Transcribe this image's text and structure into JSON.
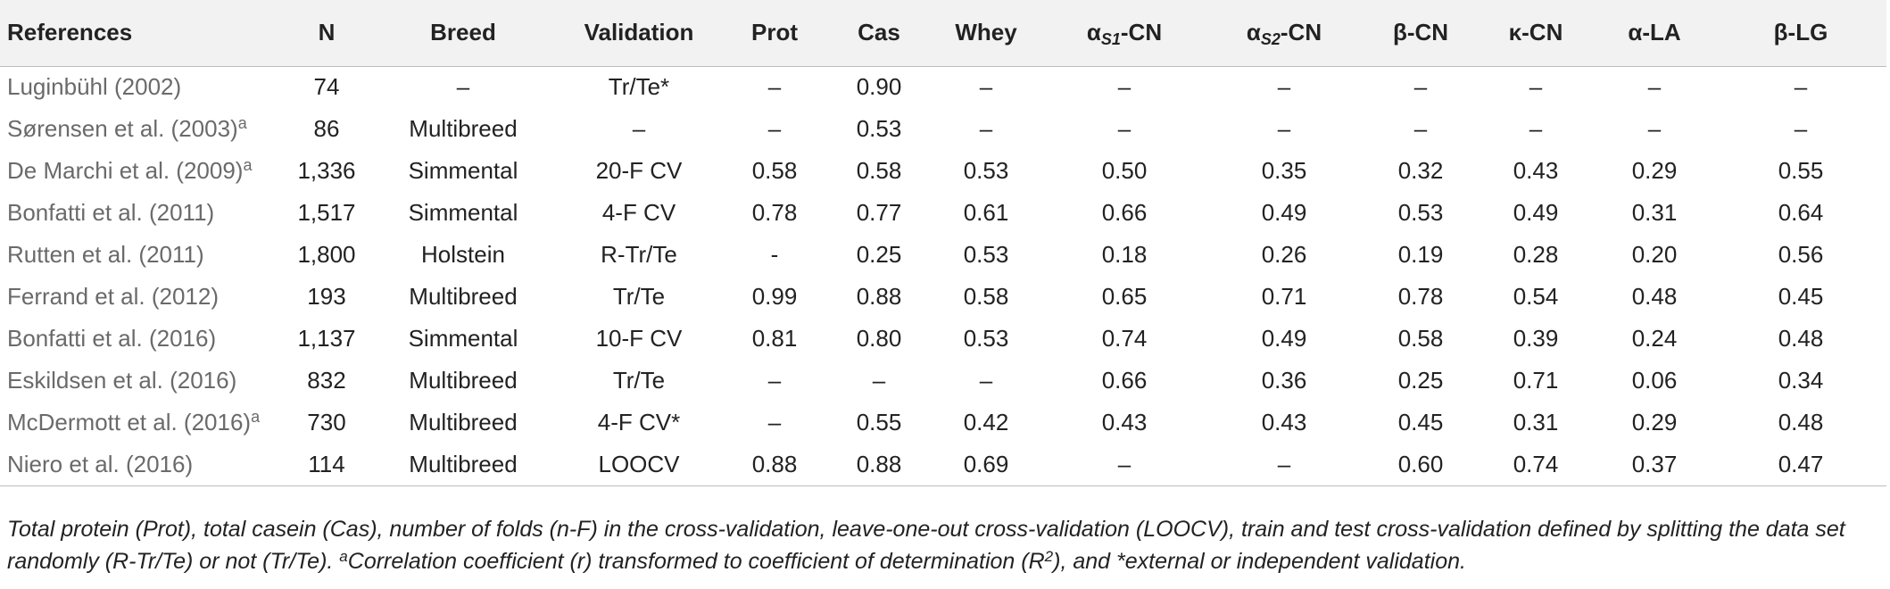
{
  "table": {
    "headers": [
      {
        "key": "references",
        "main": "References",
        "sub": "",
        "tail": ""
      },
      {
        "key": "n",
        "main": "N",
        "sub": "",
        "tail": ""
      },
      {
        "key": "breed",
        "main": "Breed",
        "sub": "",
        "tail": ""
      },
      {
        "key": "validation",
        "main": "Validation",
        "sub": "",
        "tail": ""
      },
      {
        "key": "prot",
        "main": "Prot",
        "sub": "",
        "tail": ""
      },
      {
        "key": "cas",
        "main": "Cas",
        "sub": "",
        "tail": ""
      },
      {
        "key": "whey",
        "main": "Whey",
        "sub": "",
        "tail": ""
      },
      {
        "key": "as1cn",
        "main": "α",
        "sub": "S1",
        "tail": "-CN"
      },
      {
        "key": "as2cn",
        "main": "α",
        "sub": "S2",
        "tail": "-CN"
      },
      {
        "key": "bcn",
        "main": "β-CN",
        "sub": "",
        "tail": ""
      },
      {
        "key": "kcn",
        "main": "κ-CN",
        "sub": "",
        "tail": ""
      },
      {
        "key": "ala",
        "main": "α-LA",
        "sub": "",
        "tail": ""
      },
      {
        "key": "blg",
        "main": "β-LG",
        "sub": "",
        "tail": ""
      }
    ],
    "rows": [
      {
        "ref": "Luginbühl (2002)",
        "mark": "",
        "cells": [
          "74",
          "–",
          "Tr/Te*",
          "–",
          "0.90",
          "–",
          "–",
          "–",
          "–",
          "–",
          "–",
          "–"
        ]
      },
      {
        "ref": "Sørensen et al. (2003)",
        "mark": "a",
        "cells": [
          "86",
          "Multibreed",
          "–",
          "–",
          "0.53",
          "–",
          "–",
          "–",
          "–",
          "–",
          "–",
          "–"
        ]
      },
      {
        "ref": "De Marchi et al. (2009)",
        "mark": "a",
        "cells": [
          "1,336",
          "Simmental",
          "20-F CV",
          "0.58",
          "0.58",
          "0.53",
          "0.50",
          "0.35",
          "0.32",
          "0.43",
          "0.29",
          "0.55"
        ]
      },
      {
        "ref": "Bonfatti et al. (2011)",
        "mark": "",
        "cells": [
          "1,517",
          "Simmental",
          "4-F CV",
          "0.78",
          "0.77",
          "0.61",
          "0.66",
          "0.49",
          "0.53",
          "0.49",
          "0.31",
          "0.64"
        ]
      },
      {
        "ref": "Rutten et al. (2011)",
        "mark": "",
        "cells": [
          "1,800",
          "Holstein",
          "R-Tr/Te",
          "-",
          "0.25",
          "0.53",
          "0.18",
          "0.26",
          "0.19",
          "0.28",
          "0.20",
          "0.56"
        ]
      },
      {
        "ref": "Ferrand et al. (2012)",
        "mark": "",
        "cells": [
          "193",
          "Multibreed",
          "Tr/Te",
          "0.99",
          "0.88",
          "0.58",
          "0.65",
          "0.71",
          "0.78",
          "0.54",
          "0.48",
          "0.45"
        ]
      },
      {
        "ref": "Bonfatti et al. (2016)",
        "mark": "",
        "cells": [
          "1,137",
          "Simmental",
          "10-F CV",
          "0.81",
          "0.80",
          "0.53",
          "0.74",
          "0.49",
          "0.58",
          "0.39",
          "0.24",
          "0.48"
        ]
      },
      {
        "ref": "Eskildsen et al. (2016)",
        "mark": "",
        "cells": [
          "832",
          "Multibreed",
          "Tr/Te",
          "–",
          "–",
          "–",
          "0.66",
          "0.36",
          "0.25",
          "0.71",
          "0.06",
          "0.34"
        ]
      },
      {
        "ref": "McDermott et al. (2016)",
        "mark": "a",
        "cells": [
          "730",
          "Multibreed",
          "4-F CV*",
          "–",
          "0.55",
          "0.42",
          "0.43",
          "0.43",
          "0.45",
          "0.31",
          "0.29",
          "0.48"
        ]
      },
      {
        "ref": "Niero et al. (2016)",
        "mark": "",
        "cells": [
          "114",
          "Multibreed",
          "LOOCV",
          "0.88",
          "0.88",
          "0.69",
          "–",
          "–",
          "0.60",
          "0.74",
          "0.37",
          "0.47"
        ]
      }
    ]
  },
  "footnote": {
    "part1": "Total protein (Prot), total casein (Cas), number of folds (n-F) in the cross-validation, leave-one-out cross-validation (LOOCV), train and test cross-validation defined by splitting the data set randomly (R-Tr/Te) or not (Tr/Te). ",
    "mark": "a",
    "part2": "Correlation coefficient (r) transformed to coefficient of determination (R",
    "exp": "2",
    "part3": "), and *external or independent validation."
  }
}
